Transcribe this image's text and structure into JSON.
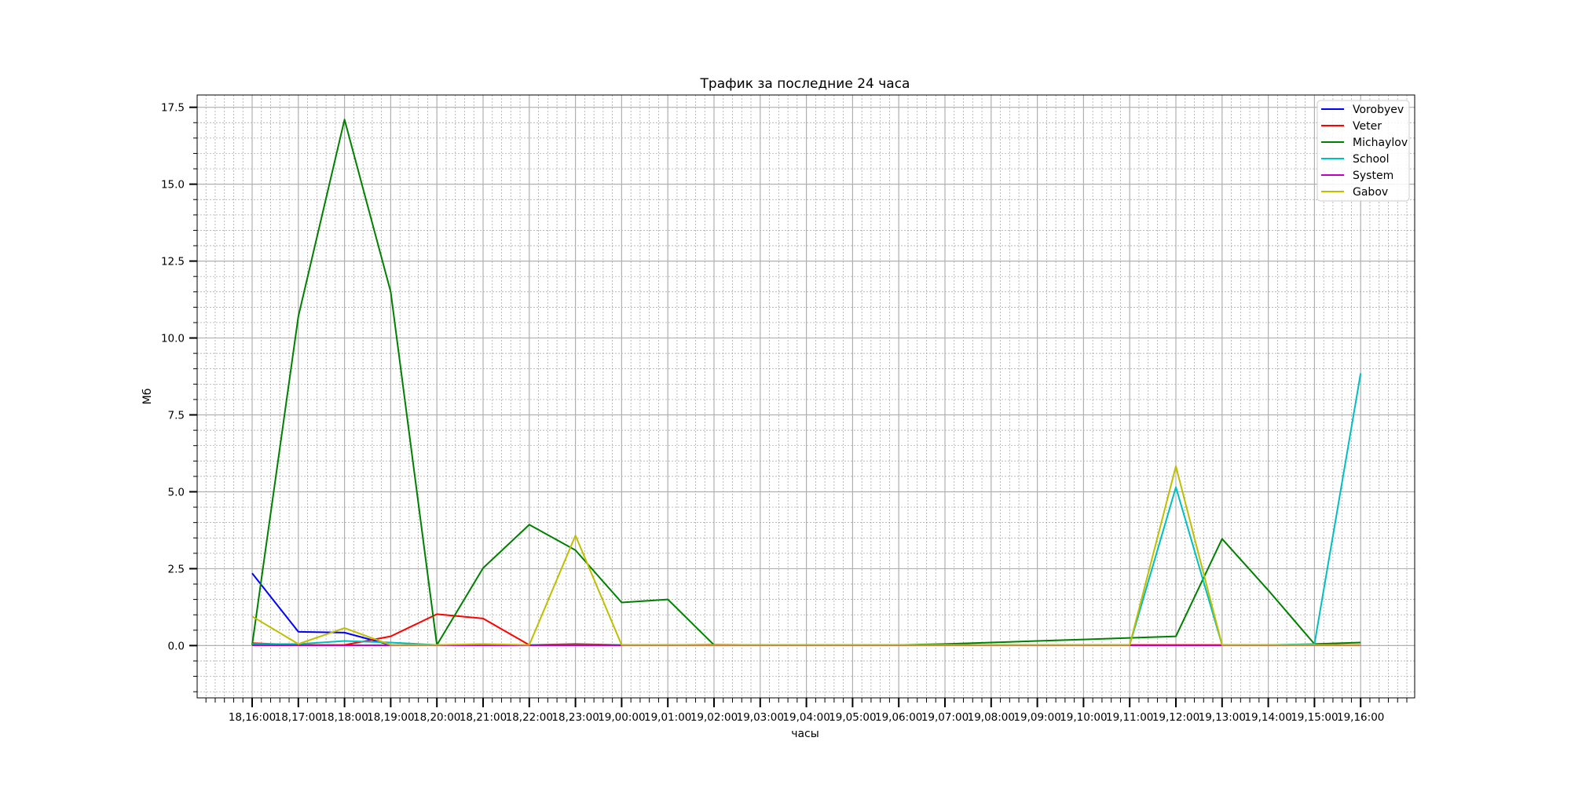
{
  "chart_data": {
    "type": "line",
    "title": "Трафик за последние 24 часа",
    "xlabel": "часы",
    "ylabel": "Мб",
    "ylim": [
      -1.7,
      17.9
    ],
    "yticks": [
      "0.0",
      "2.5",
      "5.0",
      "7.5",
      "10.0",
      "12.5",
      "15.0",
      "17.5"
    ],
    "grid": true,
    "legend_position": "top-right",
    "categories": [
      "18,16:00",
      "18,17:00",
      "18,18:00",
      "18,19:00",
      "18,20:00",
      "18,21:00",
      "18,22:00",
      "18,23:00",
      "19,00:00",
      "19,01:00",
      "19,02:00",
      "19,03:00",
      "19,04:00",
      "19,05:00",
      "19,06:00",
      "19,07:00",
      "19,08:00",
      "19,09:00",
      "19,10:00",
      "19,11:00",
      "19,12:00",
      "19,13:00",
      "19,14:00",
      "19,15:00",
      "19,16:00"
    ],
    "series": [
      {
        "name": "Vorobyev",
        "color": "#0000ff",
        "values": [
          2.35,
          0.45,
          0.42,
          0.02,
          0.01,
          0.01,
          0.01,
          0.01,
          0.01,
          0.01,
          0.01,
          0.01,
          0.01,
          0.01,
          0.01,
          0.01,
          0.01,
          0.01,
          0.01,
          0.01,
          0.01,
          0.01,
          0.01,
          0.01,
          0.02
        ]
      },
      {
        "name": "Veter",
        "color": "#ff0000",
        "values": [
          0.08,
          0.02,
          0.02,
          0.3,
          1.02,
          0.88,
          0.02,
          0.05,
          0.02,
          0.02,
          0.03,
          0.02,
          0.02,
          0.02,
          0.02,
          0.02,
          0.02,
          0.02,
          0.02,
          0.02,
          0.02,
          0.02,
          0.02,
          0.02,
          0.02
        ]
      },
      {
        "name": "Michaylov",
        "color": "#008000",
        "values": [
          0.02,
          10.7,
          17.1,
          11.5,
          0.02,
          2.52,
          3.93,
          3.1,
          1.4,
          1.5,
          0.02,
          0.02,
          0.02,
          0.02,
          0.02,
          0.05,
          0.1,
          0.15,
          0.2,
          0.25,
          0.3,
          3.47,
          1.8,
          0.05,
          0.1
        ]
      },
      {
        "name": "School",
        "color": "#00bfbf",
        "values": [
          0.05,
          0.05,
          0.15,
          0.1,
          0.02,
          0.02,
          0.02,
          0.02,
          0.02,
          0.02,
          0.02,
          0.02,
          0.02,
          0.02,
          0.02,
          0.02,
          0.02,
          0.02,
          0.02,
          0.02,
          5.15,
          0.02,
          0.02,
          0.05,
          8.85
        ]
      },
      {
        "name": "System",
        "color": "#bf00bf",
        "values": [
          0.01,
          0.01,
          0.01,
          0.01,
          0.01,
          0.01,
          0.01,
          0.01,
          0.01,
          0.01,
          0.01,
          0.01,
          0.01,
          0.01,
          0.01,
          0.01,
          0.01,
          0.01,
          0.01,
          0.01,
          0.01,
          0.01,
          0.01,
          0.01,
          0.01
        ]
      },
      {
        "name": "Gabov",
        "color": "#bfbf00",
        "values": [
          0.95,
          0.05,
          0.57,
          0.02,
          0.02,
          0.05,
          0.02,
          3.58,
          0.02,
          0.02,
          0.02,
          0.02,
          0.02,
          0.02,
          0.02,
          0.02,
          0.02,
          0.02,
          0.02,
          0.02,
          5.83,
          0.02,
          0.02,
          0.02,
          0.02
        ]
      }
    ]
  }
}
